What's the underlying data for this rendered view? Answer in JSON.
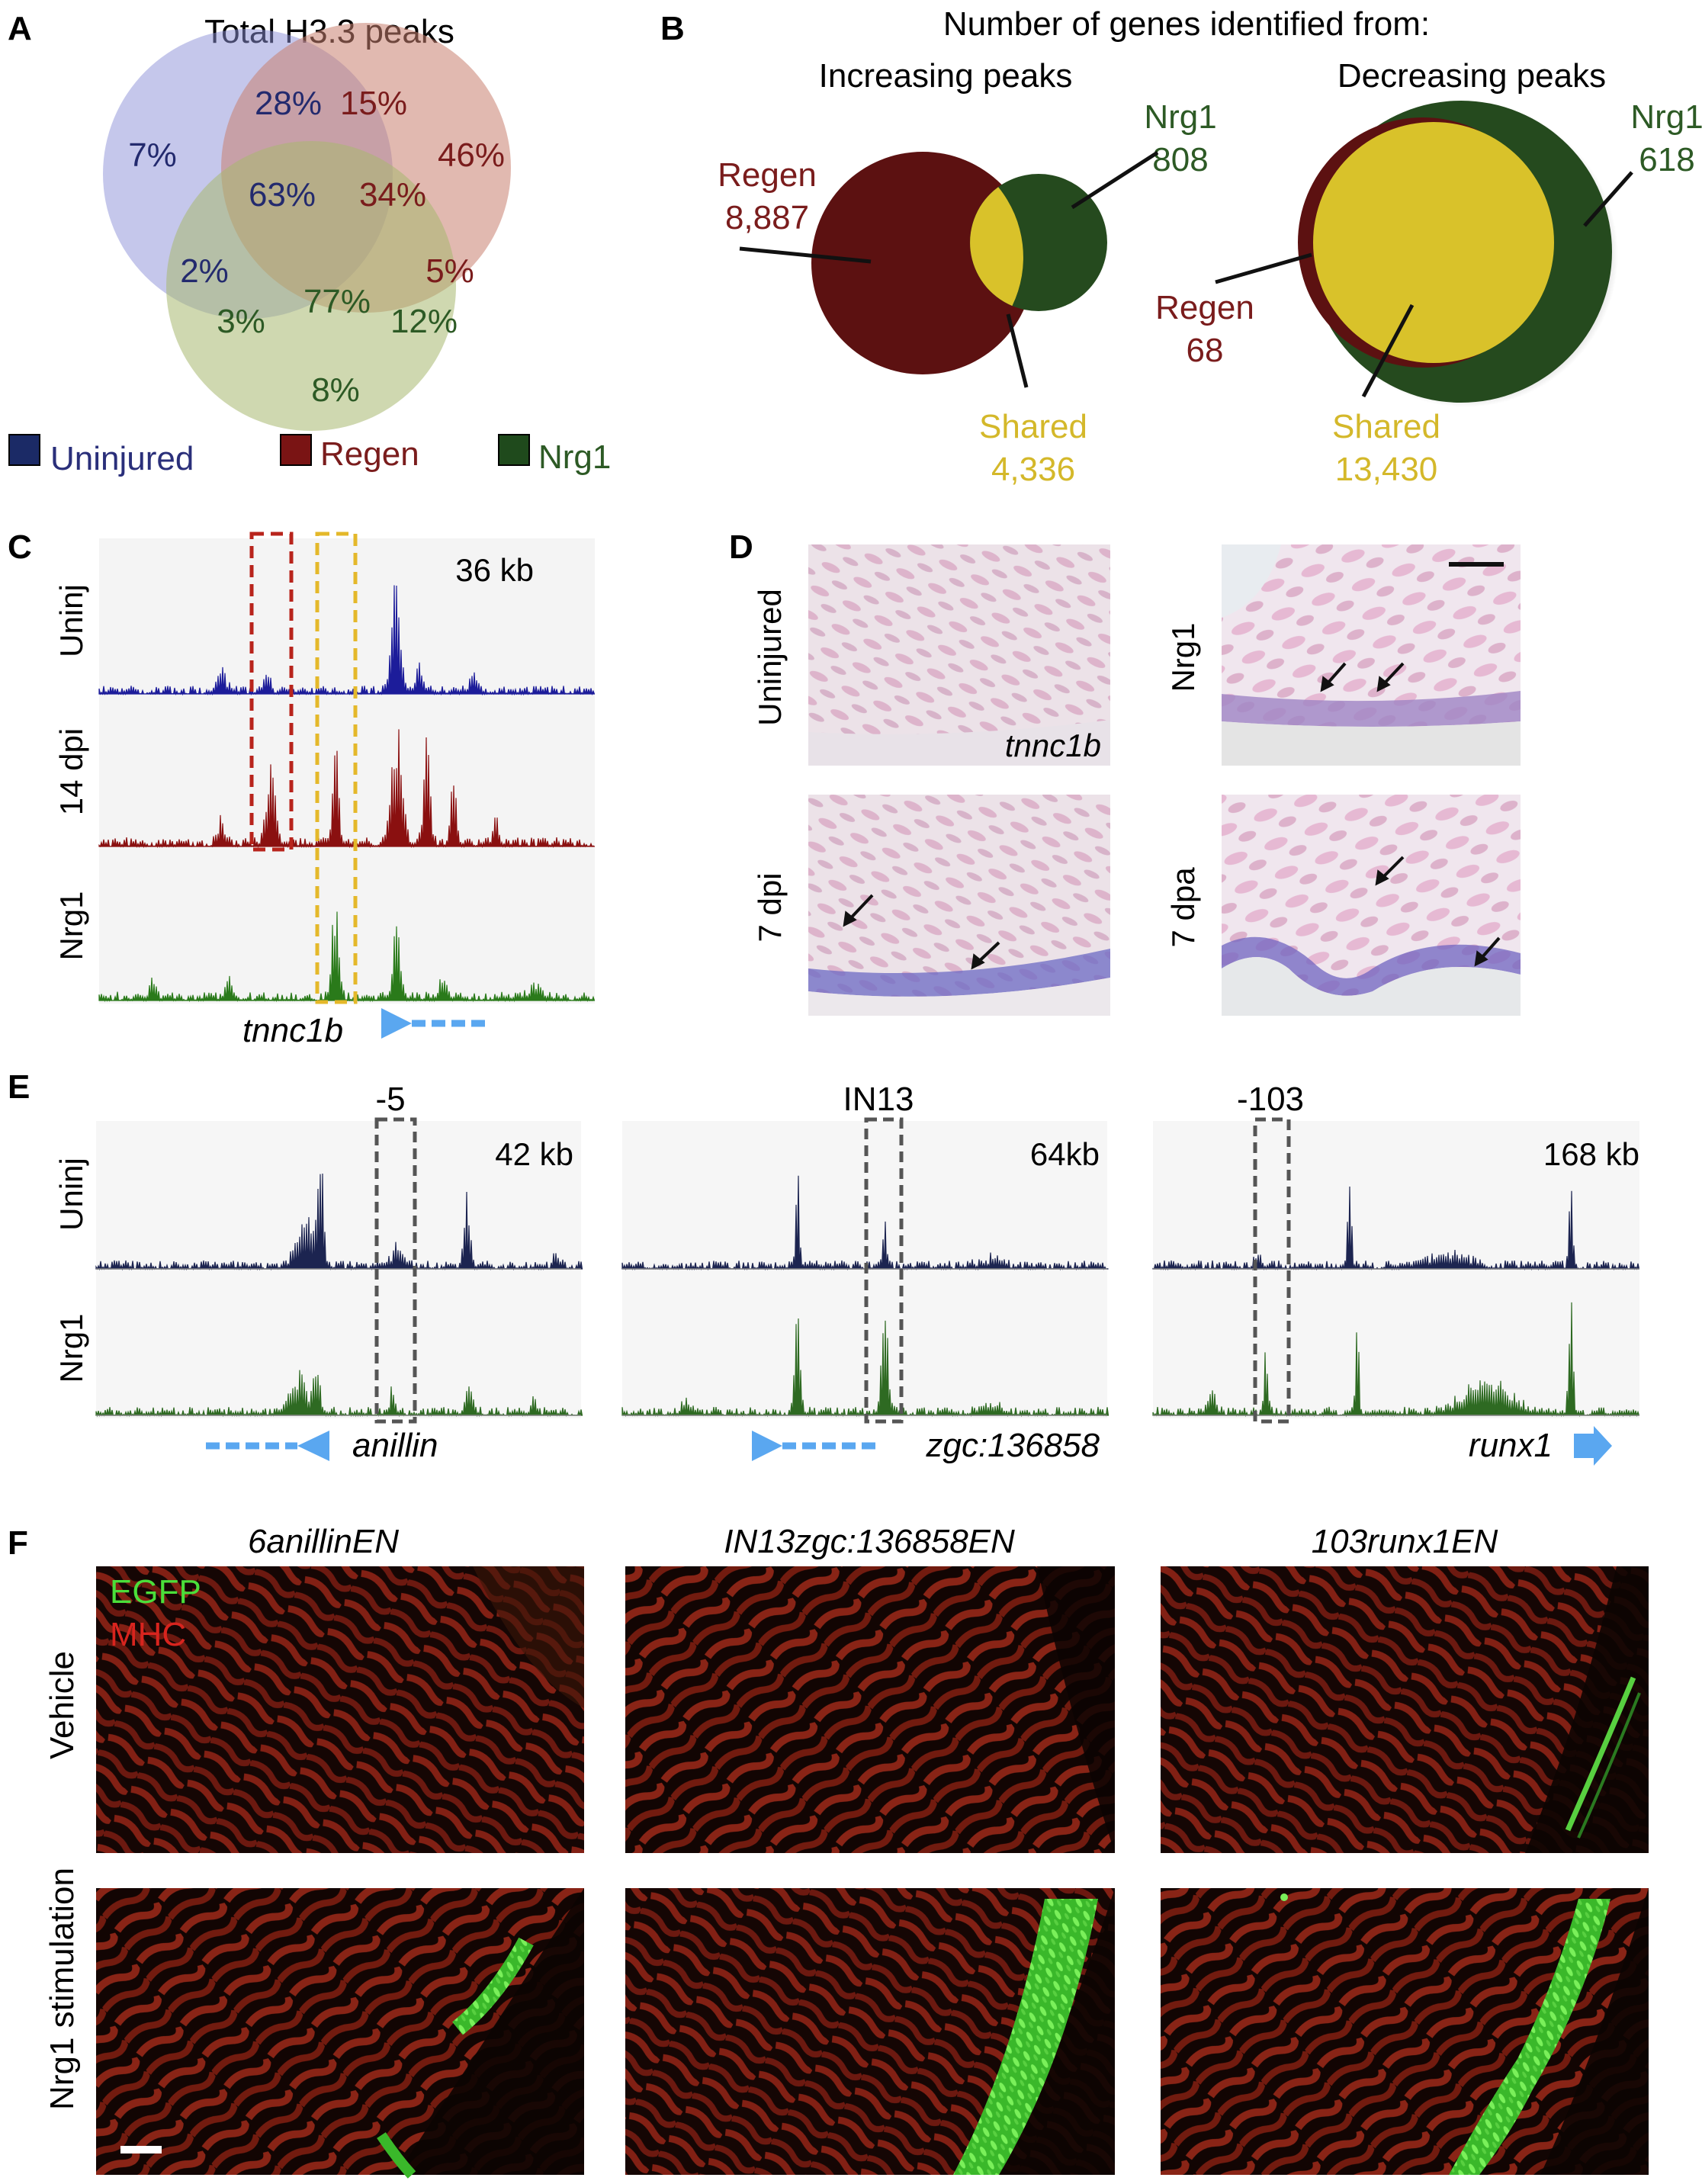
{
  "panel_labels": {
    "a": "A",
    "b": "B",
    "c": "C",
    "d": "D",
    "e": "E",
    "f": "F"
  },
  "panel_a": {
    "title": "Total H3.3 peaks",
    "venn": {
      "blue_only": "7%",
      "blue_red": "28%",
      "red_top": "15%",
      "red_only": "46%",
      "center_blue": "63%",
      "center_red": "34%",
      "blue_green": "2%",
      "red_green": "5%",
      "green_left": "3%",
      "center_green": "77%",
      "green_right": "12%",
      "green_only": "8%"
    },
    "legend": [
      {
        "label": "Uninjured",
        "color": "#1b2a66"
      },
      {
        "label": "Regen",
        "color": "#7a1414"
      },
      {
        "label": "Nrg1",
        "color": "#1f4a1c"
      }
    ],
    "colors": {
      "uninjured_text": "#2a2f7a",
      "regen_text": "#7a1c1c",
      "nrg1_text": "#2d5a25"
    }
  },
  "panel_b": {
    "heading": "Number of genes identified from:",
    "increasing": {
      "subtitle": "Increasing peaks",
      "regen_label": "Regen",
      "regen_value": "8,887",
      "nrg1_label": "Nrg1",
      "nrg1_value": "808",
      "shared_label": "Shared",
      "shared_value": "4,336"
    },
    "decreasing": {
      "subtitle": "Decreasing peaks",
      "regen_label": "Regen",
      "regen_value": "68",
      "nrg1_label": "Nrg1",
      "nrg1_value": "618",
      "shared_label": "Shared",
      "shared_value": "13,430"
    },
    "colors": {
      "regen": "#6b1414",
      "nrg1": "#2a5222",
      "shared": "#d9c22a",
      "shared_text": "#d4b82a"
    }
  },
  "panel_c": {
    "scale": "36 kb",
    "tracks": [
      {
        "label": "Uninj",
        "color": "#1c1c9a"
      },
      {
        "label": "14 dpi",
        "color": "#8a1010"
      },
      {
        "label": "Nrg1",
        "color": "#2a7a1a"
      }
    ],
    "gene": "tnnc1b"
  },
  "panel_d": {
    "rows": [
      {
        "left": "Uninjured",
        "right": "Nrg1"
      },
      {
        "left": "7 dpi",
        "right": "7 dpa"
      }
    ],
    "image_label": "tnnc1b"
  },
  "panel_e": {
    "loci": [
      {
        "marker": "-5",
        "scale": "42 kb",
        "gene": "anillin"
      },
      {
        "marker": "IN13",
        "scale": "64kb",
        "gene": "zgc:136858"
      },
      {
        "marker": "-103",
        "scale": "168 kb",
        "gene": "runx1"
      }
    ],
    "tracks": [
      "Uninj",
      "Nrg1"
    ]
  },
  "panel_f": {
    "columns": [
      "6anillinEN",
      "IN13zgc:136858EN",
      "103runx1EN"
    ],
    "rows": [
      "Vehicle",
      "Nrg1 stimulation"
    ],
    "legend": [
      {
        "label": "EGFP",
        "color": "#4adf3a"
      },
      {
        "label": "MHC",
        "color": "#d8241e"
      }
    ]
  }
}
